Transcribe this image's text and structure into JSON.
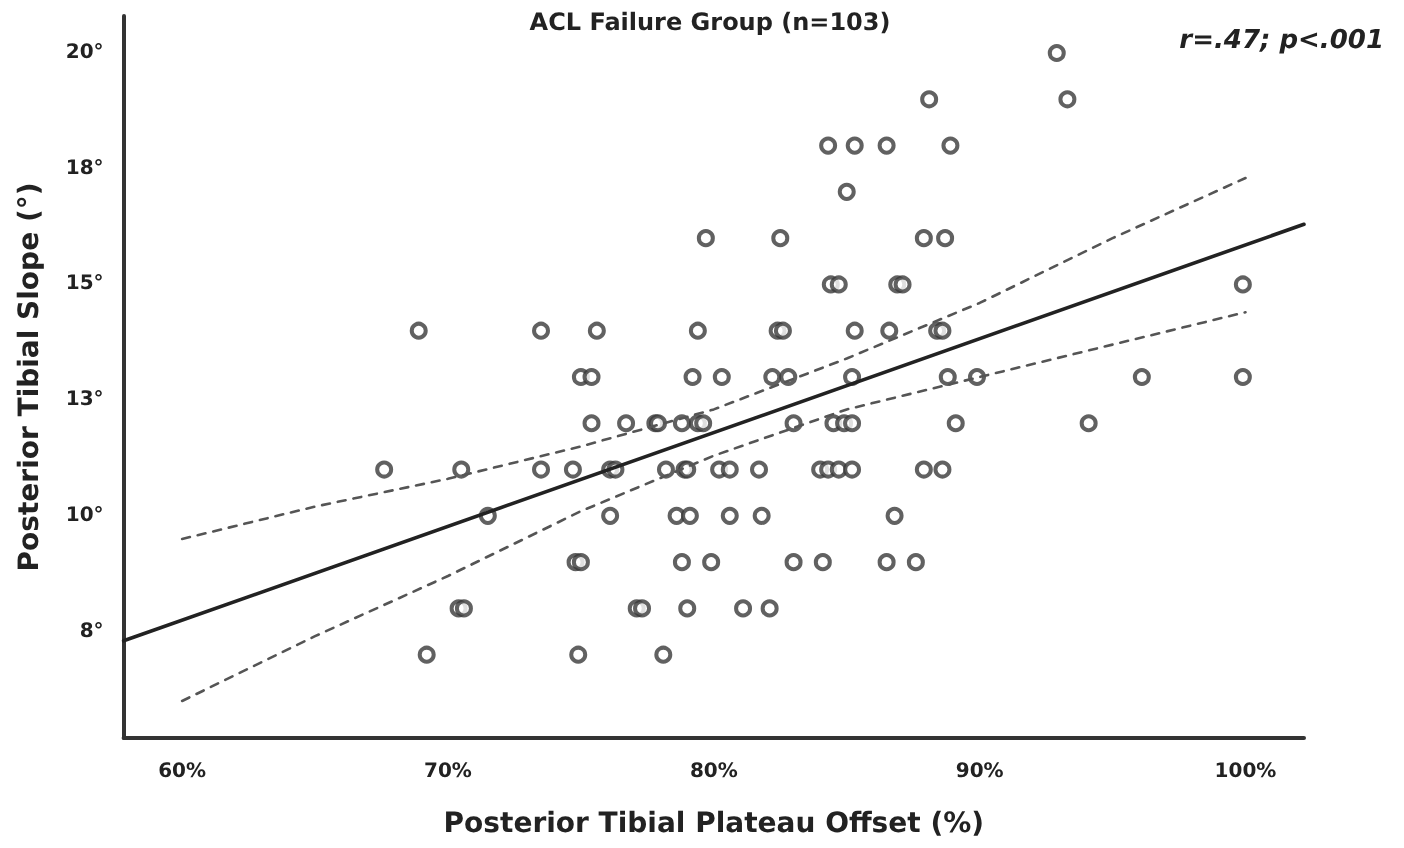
{
  "chart_data": {
    "type": "scatter",
    "title": "ACL Failure Group (n=103)",
    "xlabel": "Posterior Tibial Plateau Offset (%)",
    "ylabel": "Posterior Tibial Slope (°)",
    "annotations": [
      "r=.47; p<.001"
    ],
    "xlim": [
      57.8,
      102.2
    ],
    "ylim": [
      5.2,
      20.8
    ],
    "xticks": [
      {
        "value": 60,
        "label": "60%"
      },
      {
        "value": 70,
        "label": "70%"
      },
      {
        "value": 80,
        "label": "80%"
      },
      {
        "value": 90,
        "label": "90%"
      },
      {
        "value": 100,
        "label": "100%"
      }
    ],
    "yticks": [
      {
        "value": 7.5,
        "label": "8°"
      },
      {
        "value": 10,
        "label": "10°"
      },
      {
        "value": 12.5,
        "label": "13°"
      },
      {
        "value": 15,
        "label": "15°"
      },
      {
        "value": 17.5,
        "label": "18°"
      },
      {
        "value": 20,
        "label": "20°"
      }
    ],
    "grid": false,
    "series": [
      {
        "marker": "circle",
        "color": "#3a3a3a",
        "x": [
          92.9,
          88.1,
          93.3,
          84.3,
          85.3,
          86.5,
          88.9,
          85.0,
          79.7,
          82.5,
          87.9,
          88.7,
          84.4,
          84.7,
          86.9,
          87.1,
          99.9,
          68.9,
          73.5,
          75.6,
          79.4,
          82.4,
          82.6,
          85.3,
          86.6,
          88.4,
          88.6,
          75.0,
          75.4,
          79.2,
          80.3,
          82.2,
          82.8,
          85.2,
          88.8,
          89.9,
          96.1,
          99.9,
          75.4,
          76.7,
          77.8,
          77.9,
          78.8,
          79.4,
          79.6,
          83.0,
          84.5,
          84.9,
          85.2,
          89.1,
          94.1,
          67.6,
          70.5,
          73.5,
          74.7,
          76.1,
          76.3,
          78.2,
          78.9,
          79.0,
          80.2,
          80.6,
          81.7,
          84.0,
          84.3,
          84.7,
          85.2,
          87.9,
          88.6,
          71.5,
          76.1,
          78.6,
          79.1,
          80.6,
          81.8,
          86.8,
          74.8,
          75.0,
          78.8,
          79.9,
          83.0,
          84.1,
          86.5,
          87.6,
          70.4,
          70.6,
          77.1,
          77.3,
          79.0,
          81.1,
          82.1,
          69.2,
          74.9,
          78.1
        ],
        "values": [
          20,
          19,
          19,
          18,
          18,
          18,
          18,
          17,
          16,
          16,
          16,
          16,
          15,
          15,
          15,
          15,
          15,
          14,
          14,
          14,
          14,
          14,
          14,
          14,
          14,
          14,
          14,
          13,
          13,
          13,
          13,
          13,
          13,
          13,
          13,
          13,
          13,
          13,
          12,
          12,
          12,
          12,
          12,
          12,
          12,
          12,
          12,
          12,
          12,
          12,
          12,
          11,
          11,
          11,
          11,
          11,
          11,
          11,
          11,
          11,
          11,
          11,
          11,
          11,
          11,
          11,
          11,
          11,
          11,
          10,
          10,
          10,
          10,
          10,
          10,
          10,
          9,
          9,
          9,
          9,
          9,
          9,
          9,
          9,
          8,
          8,
          8,
          8,
          8,
          8,
          8,
          7,
          7,
          7
        ]
      },
      {
        "type": "line",
        "marker": "none",
        "line_style": "solid",
        "color": "#222222",
        "x": [
          57.8,
          102.2
        ],
        "values": [
          7.3,
          16.3
        ]
      },
      {
        "type": "line",
        "marker": "none",
        "line_style": "dashed",
        "color": "#555555",
        "x": [
          60,
          65,
          70,
          75,
          80,
          85,
          90,
          95,
          100
        ],
        "values": [
          9.5,
          10.2,
          10.8,
          11.5,
          12.3,
          13.4,
          14.6,
          16.0,
          17.3
        ]
      },
      {
        "type": "line",
        "marker": "none",
        "line_style": "dashed",
        "color": "#555555",
        "x": [
          60,
          65,
          70,
          75,
          80,
          85,
          90,
          95,
          100
        ],
        "values": [
          6.0,
          7.4,
          8.7,
          10.1,
          11.3,
          12.3,
          13.0,
          13.7,
          14.4
        ]
      }
    ]
  }
}
